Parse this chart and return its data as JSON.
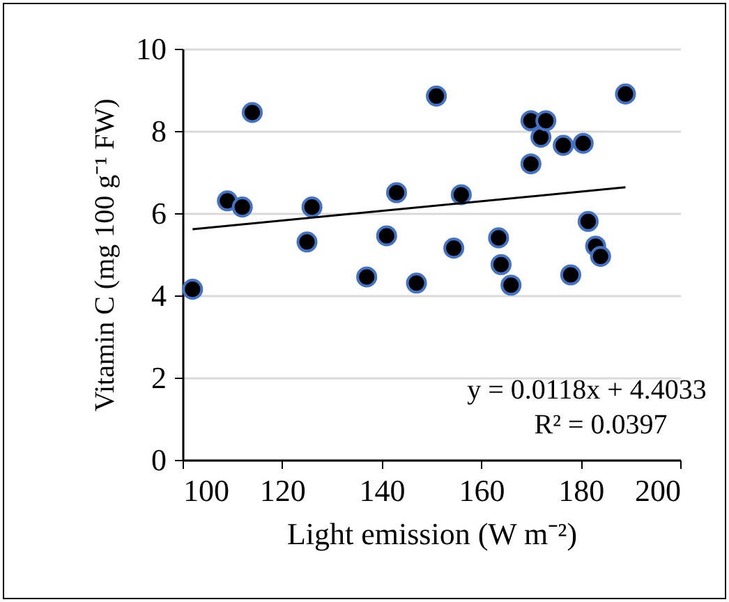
{
  "chart_data": {
    "type": "scatter",
    "xlabel": "Light emission (W m⁻²)",
    "ylabel": "Vitamin C (mg 100 g⁻¹ FW)",
    "xlim": [
      100,
      200
    ],
    "xticks": [
      100,
      120,
      140,
      160,
      180,
      200
    ],
    "ylim": [
      0,
      10
    ],
    "yticks": [
      0,
      2,
      4,
      6,
      8,
      10
    ],
    "grid": "y",
    "marker": "circle",
    "series": [
      {
        "color": "#000000",
        "x": [
          102,
          109,
          112,
          114,
          125,
          126,
          137,
          141,
          143,
          147,
          151,
          154.5,
          156,
          163.5,
          164,
          166,
          170,
          170,
          172,
          173,
          176.5,
          178,
          180.5,
          181.5,
          183,
          184,
          189
        ],
        "values": [
          4.15,
          6.3,
          6.15,
          8.45,
          5.3,
          6.15,
          4.45,
          5.45,
          6.5,
          4.3,
          8.85,
          5.15,
          6.45,
          5.4,
          4.75,
          4.25,
          8.25,
          7.2,
          7.85,
          8.25,
          7.65,
          4.5,
          7.7,
          5.8,
          5.2,
          4.95,
          8.9
        ]
      },
      {
        "type": "line",
        "marker": "none",
        "line_style": "solid",
        "color": "#000000",
        "x": [
          102,
          189
        ],
        "values": [
          5.61,
          6.63
        ]
      }
    ],
    "annotations": [
      "y = 0.0118x + 4.4033",
      "R² = 0.0397"
    ]
  }
}
